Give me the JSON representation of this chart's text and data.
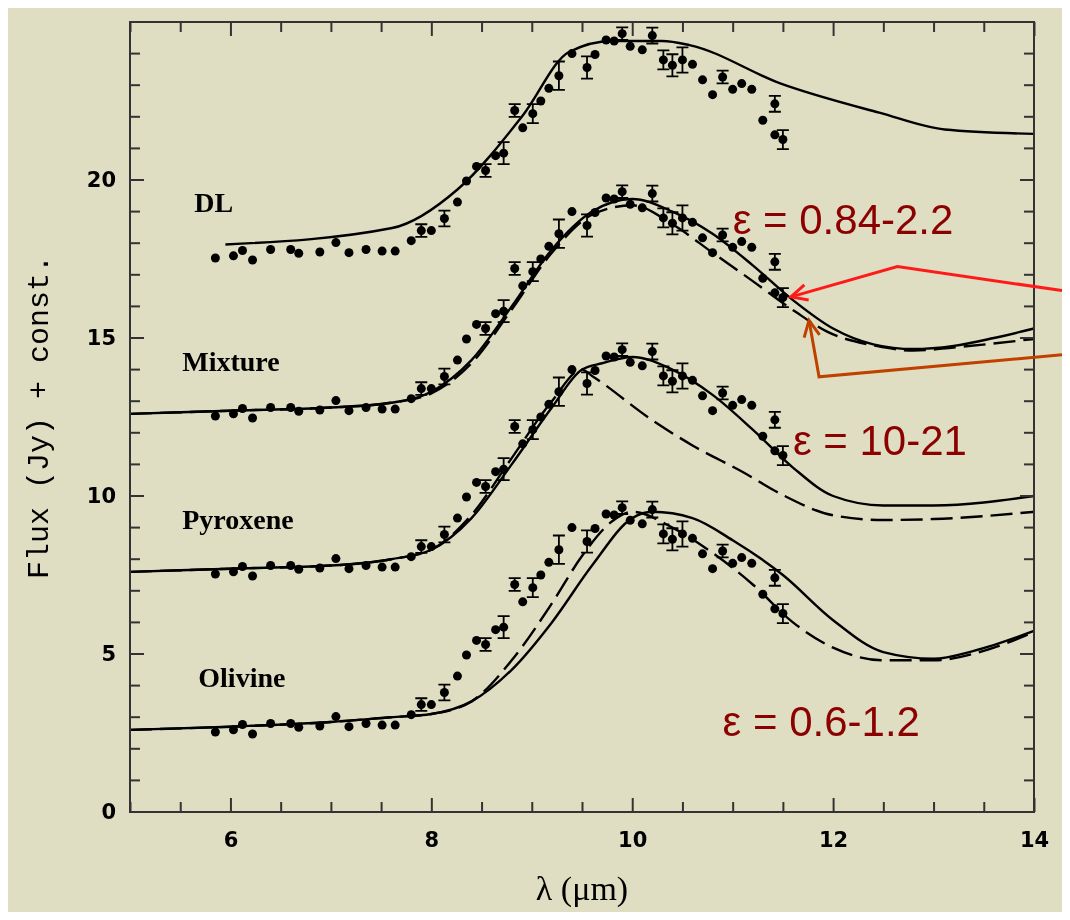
{
  "chart_data": {
    "type": "line",
    "xlabel": "λ (μm)",
    "ylabel": "Flux (Jy) + const.",
    "xlim": [
      5,
      14
    ],
    "ylim": [
      0,
      25
    ],
    "xticks": [
      {
        "value": 5,
        "label": null
      },
      {
        "value": 5.5,
        "label": null
      },
      6,
      {
        "value": 6.5,
        "label": null
      },
      {
        "value": 7,
        "label": null
      },
      {
        "value": 7.5,
        "label": null
      },
      8,
      {
        "value": 8.5,
        "label": null
      },
      {
        "value": 9,
        "label": null
      },
      {
        "value": 9.5,
        "label": null
      },
      10,
      {
        "value": 10.5,
        "label": null
      },
      {
        "value": 11,
        "label": null
      },
      {
        "value": 11.5,
        "label": null
      },
      12,
      {
        "value": 12.5,
        "label": null
      },
      {
        "value": 13,
        "label": null
      },
      {
        "value": 13.5,
        "label": null
      },
      14
    ],
    "yticks": [
      0,
      {
        "value": 1,
        "label": null
      },
      {
        "value": 2,
        "label": null
      },
      {
        "value": 3,
        "label": null
      },
      {
        "value": 4,
        "label": null
      },
      5,
      {
        "value": 6,
        "label": null
      },
      {
        "value": 7,
        "label": null
      },
      {
        "value": 8,
        "label": null
      },
      {
        "value": 9,
        "label": null
      },
      10,
      {
        "value": 11,
        "label": null
      },
      {
        "value": 12,
        "label": null
      },
      {
        "value": 13,
        "label": null
      },
      {
        "value": 14,
        "label": null
      },
      15,
      {
        "value": 16,
        "label": null
      },
      {
        "value": 17,
        "label": null
      },
      {
        "value": 18,
        "label": null
      },
      {
        "value": 19,
        "label": null
      },
      20,
      {
        "value": 21,
        "label": null
      },
      {
        "value": 22,
        "label": null
      },
      {
        "value": 23,
        "label": null
      },
      {
        "value": 24,
        "label": null
      }
    ],
    "annotations": [
      {
        "text": "ε = 0.84-2.2",
        "x": 11.58,
        "y": 16.3
      },
      {
        "text": "ε = 10-21",
        "x": 11.76,
        "y": 15.56
      },
      "ε = 0.6-1.2"
    ],
    "series": [
      {
        "name": "DL",
        "type": "scatter",
        "marker": "circle",
        "color": "#000000",
        "x": [
          5.85,
          6.03,
          6.12,
          6.22,
          6.4,
          6.6,
          6.68,
          6.89,
          7.05,
          7.18,
          7.35,
          7.51,
          7.64,
          7.8,
          7.9,
          8.0,
          8.13,
          8.26,
          8.35,
          8.45,
          8.54,
          8.64,
          8.72,
          8.83,
          8.91,
          9.01,
          9.09,
          9.17,
          9.27,
          9.4,
          9.55,
          9.63,
          9.74,
          9.82,
          9.9,
          9.98,
          10.1,
          10.2,
          10.31,
          10.4,
          10.5,
          10.6,
          10.7,
          10.8,
          10.9,
          11.0,
          11.09,
          11.19,
          11.3,
          11.42,
          11.42,
          11.5
        ],
        "values": [
          17.53,
          17.6,
          17.77,
          17.47,
          17.8,
          17.8,
          17.68,
          17.72,
          18.02,
          17.7,
          17.8,
          17.75,
          17.75,
          18.08,
          18.4,
          18.4,
          18.78,
          19.3,
          19.97,
          20.43,
          20.3,
          20.77,
          20.85,
          22.2,
          21.65,
          22.1,
          22.5,
          22.9,
          23.3,
          24.0,
          23.56,
          23.97,
          24.43,
          24.4,
          24.63,
          24.23,
          24.12,
          24.57,
          23.8,
          23.63,
          23.8,
          23.66,
          23.17,
          22.7,
          23.26,
          22.87,
          23.05,
          22.87,
          21.89,
          22.41,
          21.43,
          21.28
        ],
        "errors": [
          null,
          null,
          null,
          null,
          null,
          null,
          null,
          null,
          null,
          null,
          null,
          null,
          null,
          null,
          0.2,
          null,
          0.25,
          null,
          null,
          null,
          0.2,
          null,
          0.35,
          0.2,
          null,
          0.3,
          null,
          null,
          0.45,
          null,
          0.35,
          null,
          null,
          null,
          0.2,
          null,
          null,
          0.25,
          0.3,
          0.35,
          0.4,
          null,
          null,
          null,
          0.2,
          null,
          null,
          null,
          null,
          0.25,
          null,
          0.3
        ]
      },
      {
        "type": "line",
        "line_style": "solid",
        "marker": "none",
        "color": "#000000",
        "x": [
          5.95,
          7.61,
          8.26,
          8.91,
          9.37,
          9.8,
          10.3,
          10.57,
          11.48,
          12.46,
          13.11,
          14
        ],
        "values": [
          17.96,
          18.48,
          19.7,
          22.04,
          24.05,
          24.4,
          24.4,
          24.27,
          23.05,
          22.13,
          21.6,
          21.46
        ]
      },
      {
        "name": "Mixture",
        "type": "scatter",
        "marker": "circle",
        "color": "#000000",
        "x": [
          5.85,
          6.03,
          6.12,
          6.22,
          6.4,
          6.6,
          6.68,
          6.89,
          7.05,
          7.18,
          7.35,
          7.51,
          7.64,
          7.8,
          7.9,
          8.0,
          8.13,
          8.26,
          8.35,
          8.45,
          8.54,
          8.64,
          8.72,
          8.83,
          8.91,
          9.01,
          9.09,
          9.17,
          9.27,
          9.4,
          9.55,
          9.63,
          9.74,
          9.82,
          9.9,
          9.98,
          10.1,
          10.2,
          10.31,
          10.4,
          10.5,
          10.6,
          10.7,
          10.8,
          10.9,
          11.0,
          11.09,
          11.19,
          11.3,
          11.42,
          11.42,
          11.5
        ],
        "values": [
          12.53,
          12.6,
          12.77,
          12.47,
          12.8,
          12.8,
          12.68,
          12.72,
          13.02,
          12.7,
          12.8,
          12.75,
          12.75,
          13.08,
          13.4,
          13.4,
          13.78,
          14.3,
          14.97,
          15.43,
          15.3,
          15.77,
          15.85,
          17.2,
          16.65,
          17.1,
          17.5,
          17.9,
          18.3,
          19.0,
          18.56,
          18.97,
          19.43,
          19.4,
          19.63,
          19.23,
          19.12,
          19.57,
          18.8,
          18.63,
          18.8,
          18.66,
          18.17,
          17.7,
          18.26,
          17.87,
          18.05,
          17.87,
          16.89,
          17.41,
          16.43,
          16.28
        ],
        "errors": [
          null,
          null,
          null,
          null,
          null,
          null,
          null,
          null,
          null,
          null,
          null,
          null,
          null,
          null,
          0.2,
          null,
          0.25,
          null,
          null,
          null,
          0.2,
          null,
          0.35,
          0.2,
          null,
          0.3,
          null,
          null,
          0.45,
          null,
          0.35,
          null,
          null,
          null,
          0.2,
          null,
          null,
          0.25,
          0.3,
          0.35,
          0.4,
          null,
          null,
          null,
          0.2,
          null,
          null,
          null,
          null,
          0.25,
          null,
          0.3
        ]
      },
      {
        "type": "line",
        "line_style": "solid",
        "marker": "none",
        "color": "#000000",
        "x": [
          5,
          6,
          7,
          7.6,
          8,
          8.4,
          8.8,
          9.2,
          9.6,
          10,
          10.4,
          10.8,
          11.2,
          11.6,
          12,
          12.4,
          12.8,
          13.2,
          13.6,
          14
        ],
        "values": [
          12.6,
          12.7,
          12.8,
          12.95,
          13.3,
          14.3,
          16.0,
          17.8,
          19.0,
          19.4,
          19.0,
          18.3,
          17.3,
          16.2,
          15.3,
          14.8,
          14.65,
          14.75,
          15.0,
          15.3
        ]
      },
      {
        "type": "line",
        "line_style": "dashed",
        "marker": "none",
        "color": "#000000",
        "x": [
          5,
          6,
          7,
          7.6,
          8,
          8.4,
          8.8,
          9.2,
          9.6,
          10,
          10.4,
          10.8,
          11.2,
          11.63,
          11.94,
          12.43,
          12.8,
          13.2,
          14
        ],
        "values": [
          12.6,
          12.7,
          12.8,
          12.95,
          13.25,
          14.2,
          15.9,
          17.7,
          18.9,
          19.2,
          18.6,
          17.7,
          16.8,
          15.82,
          15.2,
          14.75,
          14.6,
          14.7,
          14.97
        ]
      },
      {
        "name": "Pyroxene",
        "type": "scatter",
        "marker": "circle",
        "color": "#000000",
        "x": [
          5.85,
          6.03,
          6.12,
          6.22,
          6.4,
          6.6,
          6.68,
          6.89,
          7.05,
          7.18,
          7.35,
          7.51,
          7.64,
          7.8,
          7.9,
          8.0,
          8.13,
          8.26,
          8.35,
          8.45,
          8.54,
          8.64,
          8.72,
          8.83,
          8.91,
          9.01,
          9.09,
          9.17,
          9.27,
          9.4,
          9.55,
          9.63,
          9.74,
          9.82,
          9.9,
          9.98,
          10.1,
          10.2,
          10.31,
          10.4,
          10.5,
          10.6,
          10.7,
          10.8,
          10.9,
          11.0,
          11.09,
          11.19,
          11.3,
          11.42,
          11.42,
          11.5
        ],
        "values": [
          7.53,
          7.6,
          7.77,
          7.47,
          7.8,
          7.8,
          7.68,
          7.72,
          8.02,
          7.7,
          7.8,
          7.75,
          7.75,
          8.08,
          8.4,
          8.4,
          8.78,
          9.3,
          9.97,
          10.43,
          10.3,
          10.77,
          10.85,
          12.2,
          11.65,
          12.1,
          12.5,
          12.9,
          13.3,
          14.0,
          13.56,
          13.97,
          14.43,
          14.4,
          14.63,
          14.23,
          14.12,
          14.57,
          13.8,
          13.63,
          13.8,
          13.66,
          13.17,
          12.7,
          13.26,
          12.87,
          13.05,
          12.87,
          11.89,
          12.41,
          11.43,
          11.28
        ],
        "errors": [
          null,
          null,
          null,
          null,
          null,
          null,
          null,
          null,
          null,
          null,
          null,
          null,
          null,
          null,
          0.2,
          null,
          0.25,
          null,
          null,
          null,
          0.2,
          null,
          0.35,
          0.2,
          null,
          0.3,
          null,
          null,
          0.45,
          null,
          0.35,
          null,
          null,
          null,
          0.2,
          null,
          null,
          0.25,
          0.3,
          0.35,
          0.4,
          null,
          null,
          null,
          0.2,
          null,
          null,
          null,
          null,
          0.25,
          null,
          0.3
        ]
      },
      {
        "type": "line",
        "line_style": "solid",
        "marker": "none",
        "color": "#000000",
        "x": [
          5,
          6,
          7,
          7.6,
          8,
          8.4,
          8.8,
          9.2,
          9.5,
          9.7,
          10,
          10.4,
          10.8,
          11.2,
          11.6,
          12,
          12.5,
          13,
          14
        ],
        "values": [
          7.6,
          7.7,
          7.8,
          8.0,
          8.3,
          9.3,
          11.0,
          12.8,
          14.0,
          14.2,
          14.4,
          14.0,
          13.2,
          12.1,
          10.9,
          10.0,
          9.7,
          9.7,
          10.0
        ]
      },
      {
        "type": "line",
        "line_style": "dashed",
        "marker": "none",
        "color": "#000000",
        "x": [
          5,
          6,
          7,
          7.6,
          8,
          8.4,
          8.8,
          9.2,
          9.5,
          9.6,
          10.2,
          10.6,
          11.1,
          11.5,
          12,
          12.5,
          13,
          14
        ],
        "values": [
          7.6,
          7.7,
          7.8,
          8.0,
          8.3,
          9.4,
          11.2,
          13.0,
          14.0,
          13.8,
          12.4,
          11.6,
          10.76,
          10.03,
          9.39,
          9.24,
          9.27,
          9.5
        ]
      },
      {
        "name": "Olivine",
        "type": "scatter",
        "marker": "circle",
        "color": "#000000",
        "x": [
          5.85,
          6.03,
          6.12,
          6.22,
          6.4,
          6.6,
          6.68,
          6.89,
          7.05,
          7.18,
          7.35,
          7.51,
          7.64,
          7.8,
          7.9,
          8.0,
          8.13,
          8.26,
          8.35,
          8.45,
          8.54,
          8.64,
          8.72,
          8.83,
          8.91,
          9.01,
          9.09,
          9.17,
          9.27,
          9.4,
          9.55,
          9.63,
          9.74,
          9.82,
          9.9,
          9.98,
          10.1,
          10.2,
          10.31,
          10.4,
          10.5,
          10.6,
          10.7,
          10.8,
          10.9,
          11.0,
          11.09,
          11.19,
          11.3,
          11.42,
          11.42,
          11.5
        ],
        "values": [
          2.53,
          2.6,
          2.77,
          2.47,
          2.8,
          2.8,
          2.68,
          2.72,
          3.02,
          2.7,
          2.8,
          2.75,
          2.75,
          3.08,
          3.4,
          3.4,
          3.78,
          4.3,
          4.97,
          5.43,
          5.3,
          5.77,
          5.85,
          7.2,
          6.65,
          7.1,
          7.5,
          7.9,
          8.3,
          9.0,
          8.56,
          8.97,
          9.43,
          9.4,
          9.63,
          9.23,
          9.12,
          9.57,
          8.8,
          8.63,
          8.8,
          8.66,
          8.17,
          7.7,
          8.26,
          7.87,
          8.05,
          7.87,
          6.89,
          7.41,
          6.43,
          6.28
        ],
        "errors": [
          null,
          null,
          null,
          null,
          null,
          null,
          null,
          null,
          null,
          null,
          null,
          null,
          null,
          null,
          0.2,
          null,
          0.25,
          null,
          null,
          null,
          0.2,
          null,
          0.35,
          0.2,
          null,
          0.3,
          null,
          null,
          0.45,
          null,
          0.35,
          null,
          null,
          null,
          0.2,
          null,
          null,
          0.25,
          0.3,
          0.35,
          0.4,
          null,
          null,
          null,
          0.2,
          null,
          null,
          null,
          null,
          0.25,
          null,
          0.3
        ]
      },
      {
        "type": "line",
        "line_style": "solid",
        "marker": "none",
        "color": "#000000",
        "x": [
          5,
          6,
          7,
          7.6,
          8,
          8.4,
          8.8,
          9.2,
          9.6,
          10,
          10.2,
          10.6,
          11,
          11.5,
          12,
          12.5,
          13,
          13.4,
          14
        ],
        "values": [
          2.6,
          2.7,
          2.85,
          3.0,
          3.1,
          3.5,
          4.5,
          6.0,
          7.8,
          9.3,
          9.5,
          9.3,
          8.6,
          7.5,
          6.07,
          5.06,
          4.85,
          5.1,
          5.73
        ]
      },
      {
        "type": "line",
        "line_style": "dashed",
        "marker": "none",
        "color": "#000000",
        "x": [
          5,
          6,
          7,
          7.6,
          8,
          8.4,
          8.8,
          9.2,
          9.5,
          9.8,
          10,
          10.4,
          10.8,
          11.2,
          11.6,
          12,
          12.5,
          13,
          13.5,
          14
        ],
        "values": [
          2.6,
          2.7,
          2.85,
          3.0,
          3.1,
          3.5,
          4.8,
          6.6,
          8.1,
          9.2,
          9.5,
          9.0,
          8.2,
          7.2,
          6.0,
          5.2,
          4.8,
          4.8,
          5.1,
          5.7
        ]
      }
    ]
  }
}
